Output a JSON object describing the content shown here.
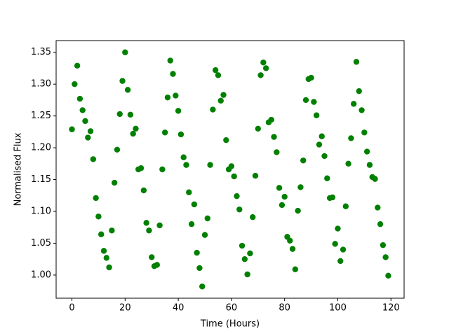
{
  "chart_data": {
    "type": "scatter",
    "x_label": "Time (Hours)",
    "y_label": "Normalised Flux",
    "color": "#008000",
    "x": [
      0,
      1,
      2,
      3,
      4,
      5,
      6,
      7,
      8,
      9,
      10,
      11,
      12,
      13,
      14,
      15,
      16,
      17,
      18,
      19,
      20,
      21,
      22,
      23,
      24,
      25,
      26,
      27,
      28,
      29,
      30,
      31,
      32,
      33,
      34,
      35,
      36,
      37,
      38,
      39,
      40,
      41,
      42,
      43,
      44,
      45,
      46,
      47,
      48,
      49,
      50,
      51,
      52,
      53,
      54,
      55,
      56,
      57,
      58,
      59,
      60,
      61,
      62,
      63,
      64,
      65,
      66,
      67,
      68,
      69,
      70,
      71,
      72,
      73,
      74,
      75,
      76,
      77,
      78,
      79,
      80,
      81,
      82,
      83,
      84,
      85,
      86,
      87,
      88,
      89,
      90,
      91,
      92,
      93,
      94,
      95,
      96,
      97,
      98,
      99,
      100,
      101,
      102,
      103,
      104,
      105,
      106,
      107,
      108,
      109,
      110,
      111,
      112,
      113,
      114,
      115,
      116,
      117,
      118,
      119
    ],
    "values": [
      1.229,
      1.3,
      1.329,
      1.277,
      1.259,
      1.242,
      1.216,
      1.226,
      1.182,
      1.121,
      1.092,
      1.064,
      1.038,
      1.027,
      1.012,
      1.07,
      1.145,
      1.197,
      1.253,
      1.305,
      1.35,
      1.291,
      1.252,
      1.222,
      1.23,
      1.166,
      1.168,
      1.133,
      1.082,
      1.07,
      1.028,
      1.014,
      1.016,
      1.078,
      1.166,
      1.224,
      1.279,
      1.337,
      1.316,
      1.282,
      1.258,
      1.221,
      1.185,
      1.173,
      1.13,
      1.08,
      1.111,
      1.035,
      1.011,
      0.982,
      1.063,
      1.089,
      1.173,
      1.26,
      1.322,
      1.314,
      1.274,
      1.283,
      1.212,
      1.166,
      1.171,
      1.155,
      1.124,
      1.103,
      1.046,
      1.025,
      1.001,
      1.034,
      1.091,
      1.156,
      1.23,
      1.314,
      1.334,
      1.325,
      1.24,
      1.244,
      1.217,
      1.193,
      1.137,
      1.11,
      1.123,
      1.06,
      1.054,
      1.041,
      1.009,
      1.101,
      1.138,
      1.18,
      1.275,
      1.308,
      1.31,
      1.272,
      1.251,
      1.205,
      1.218,
      1.187,
      1.152,
      1.121,
      1.122,
      1.049,
      1.073,
      1.022,
      1.04,
      1.108,
      1.175,
      1.215,
      1.269,
      1.335,
      1.289,
      1.259,
      1.224,
      1.194,
      1.173,
      1.154,
      1.151,
      1.106,
      1.08,
      1.047,
      1.028,
      0.999
    ],
    "xlim": [
      -5.95,
      124.95
    ],
    "xticks": [
      0,
      20,
      40,
      60,
      80,
      100,
      120
    ],
    "ylim": [
      0.9636,
      1.3684
    ],
    "yticks": [
      {
        "value": 1,
        "label": "1.00"
      },
      1.05,
      {
        "value": 1.1,
        "label": "1.10"
      },
      1.15,
      {
        "value": 1.2,
        "label": "1.20"
      },
      1.25,
      {
        "value": 1.3,
        "label": "1.30"
      },
      1.35
    ]
  }
}
